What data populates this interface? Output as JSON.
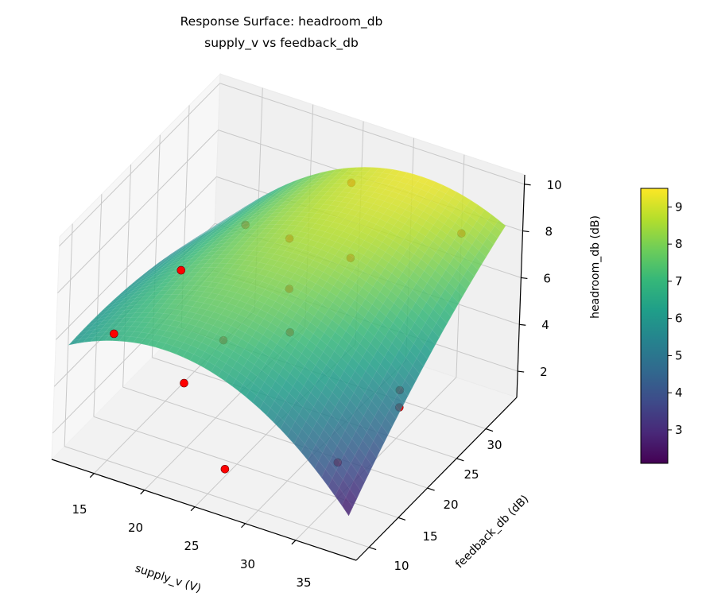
{
  "chart_data": {
    "type": "surface3d",
    "title": "Response Surface: headroom_db",
    "subtitle": "supply_v vs feedback_db",
    "xlabel": "supply_v (V)",
    "ylabel": "feedback_db (dB)",
    "zlabel": "headroom_db (dB)",
    "xlim": [
      10.8,
      41.0
    ],
    "ylim": [
      7.8,
      35.3
    ],
    "zlim": [
      0.88,
      10.4
    ],
    "xticks": [
      15,
      20,
      25,
      30,
      35
    ],
    "yticks": [
      10,
      15,
      20,
      25,
      30
    ],
    "zticks": [
      2,
      4,
      6,
      8,
      10
    ],
    "surface": {
      "x_range": [
        12,
        40
      ],
      "y_range": [
        8,
        34
      ],
      "colormap": "viridis",
      "alpha": 0.85,
      "model": "quadratic in normalized u=(x-26)/14, v=(y-21)/13",
      "coefficients": {
        "const": 8.33,
        "u": 0.175,
        "v": 1.075,
        "u2": -2.5,
        "v2": -0.5,
        "uv": 1.825
      }
    },
    "points": [
      {
        "x": 14.7,
        "y": 11.0,
        "z": 6.0
      },
      {
        "x": 16.7,
        "y": 18.9,
        "z": 7.0
      },
      {
        "x": 18.6,
        "y": 16.7,
        "z": 3.0
      },
      {
        "x": 25.5,
        "y": 12.0,
        "z": 1.5
      },
      {
        "x": 16.5,
        "y": 30.4,
        "z": 6.0
      },
      {
        "x": 23.3,
        "y": 26.0,
        "z": 7.5
      },
      {
        "x": 26.3,
        "y": 31.2,
        "z": 9.0
      },
      {
        "x": 36.6,
        "y": 32.4,
        "z": 8.0
      },
      {
        "x": 29.3,
        "y": 26.1,
        "z": 7.5
      },
      {
        "x": 24.5,
        "y": 24.1,
        "z": 6.0
      },
      {
        "x": 26.1,
        "y": 21.6,
        "z": 5.0
      },
      {
        "x": 21.7,
        "y": 17.8,
        "z": 5.0
      },
      {
        "x": 36.9,
        "y": 21.9,
        "z": 4.0
      },
      {
        "x": 37.3,
        "y": 21.2,
        "z": 3.5
      },
      {
        "x": 35.1,
        "y": 14.6,
        "z": 2.5
      }
    ],
    "point_color": "#ff0000",
    "colorbar": {
      "label": "headroom_db (dB)",
      "range": [
        2.1,
        9.5
      ],
      "ticks": [
        3,
        4,
        5,
        6,
        7,
        8,
        9
      ]
    },
    "grid": true
  }
}
